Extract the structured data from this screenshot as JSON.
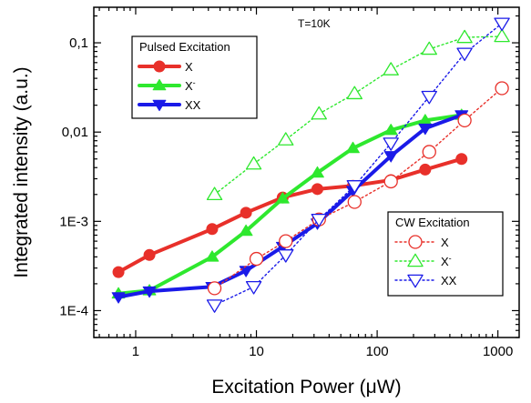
{
  "chart_data": {
    "type": "line",
    "xlabel": "Excitation Power (μW)",
    "ylabel": "Integrated intensity (a.u.)",
    "xscale": "log",
    "yscale": "log",
    "xlim": [
      0.45,
      1500
    ],
    "ylim": [
      5e-05,
      0.25
    ],
    "x_ticks": [
      1,
      10,
      100,
      1000
    ],
    "x_tick_labels": [
      "1",
      "10",
      "100",
      "1000"
    ],
    "y_ticks": [
      0.0001,
      0.001,
      0.01,
      0.1
    ],
    "y_tick_labels": [
      "1E-4",
      "1E-3",
      "0,01",
      "0,1"
    ],
    "annotation": "T=10K",
    "legends": [
      {
        "title": "Pulsed Excitation",
        "placement": "top-left",
        "entries": [
          "X",
          "X-",
          "XX"
        ]
      },
      {
        "title": "CW Excitation",
        "placement": "bottom-right",
        "entries": [
          "X",
          "X-",
          "XX"
        ]
      }
    ],
    "series": [
      {
        "name": "X",
        "group": "Pulsed Excitation",
        "color": "#e8302a",
        "style": "solid",
        "marker": "circle",
        "filled": true,
        "x": [
          0.72,
          1.3,
          4.3,
          8.2,
          16.5,
          32,
          63,
          130,
          250,
          500
        ],
        "y": [
          0.00027,
          0.00042,
          0.00082,
          0.00125,
          0.00185,
          0.0023,
          0.0025,
          0.0029,
          0.0038,
          0.005
        ]
      },
      {
        "name": "X-",
        "group": "Pulsed Excitation",
        "color": "#2ee82e",
        "style": "solid",
        "marker": "triangle-up",
        "filled": true,
        "x": [
          0.72,
          1.3,
          4.3,
          8.2,
          16.5,
          32,
          63,
          130,
          250,
          500
        ],
        "y": [
          0.000155,
          0.000168,
          0.0004,
          0.00078,
          0.0018,
          0.0035,
          0.0066,
          0.0105,
          0.0135,
          0.0155
        ]
      },
      {
        "name": "XX",
        "group": "Pulsed Excitation",
        "color": "#1a1ae8",
        "style": "solid",
        "marker": "triangle-down",
        "filled": true,
        "x": [
          0.72,
          1.3,
          4.3,
          8.2,
          16.5,
          32,
          63,
          130,
          250,
          500
        ],
        "y": [
          0.000142,
          0.000165,
          0.000185,
          0.00028,
          0.00052,
          0.00095,
          0.0022,
          0.0054,
          0.011,
          0.0155
        ]
      },
      {
        "name": "X",
        "group": "CW Excitation",
        "color": "#e8302a",
        "style": "dotted",
        "marker": "circle",
        "filled": false,
        "x": [
          4.5,
          10,
          17.5,
          33,
          65,
          130,
          270,
          530,
          1080
        ],
        "y": [
          0.000178,
          0.00038,
          0.0006,
          0.00105,
          0.00165,
          0.0028,
          0.006,
          0.0135,
          0.031
        ]
      },
      {
        "name": "X-",
        "group": "CW Excitation",
        "color": "#2ee82e",
        "style": "dotted",
        "marker": "triangle-up",
        "filled": false,
        "x": [
          4.5,
          9.5,
          17.5,
          33,
          65,
          130,
          270,
          530,
          1080
        ],
        "y": [
          0.002,
          0.0044,
          0.0082,
          0.016,
          0.027,
          0.05,
          0.085,
          0.115,
          0.118
        ]
      },
      {
        "name": "XX",
        "group": "CW Excitation",
        "color": "#1a1ae8",
        "style": "dotted",
        "marker": "triangle-down",
        "filled": false,
        "x": [
          4.5,
          9.5,
          17.5,
          33,
          65,
          130,
          270,
          530,
          1080
        ],
        "y": [
          0.000115,
          0.000185,
          0.00042,
          0.00105,
          0.0025,
          0.0075,
          0.025,
          0.076,
          0.165
        ]
      }
    ]
  }
}
